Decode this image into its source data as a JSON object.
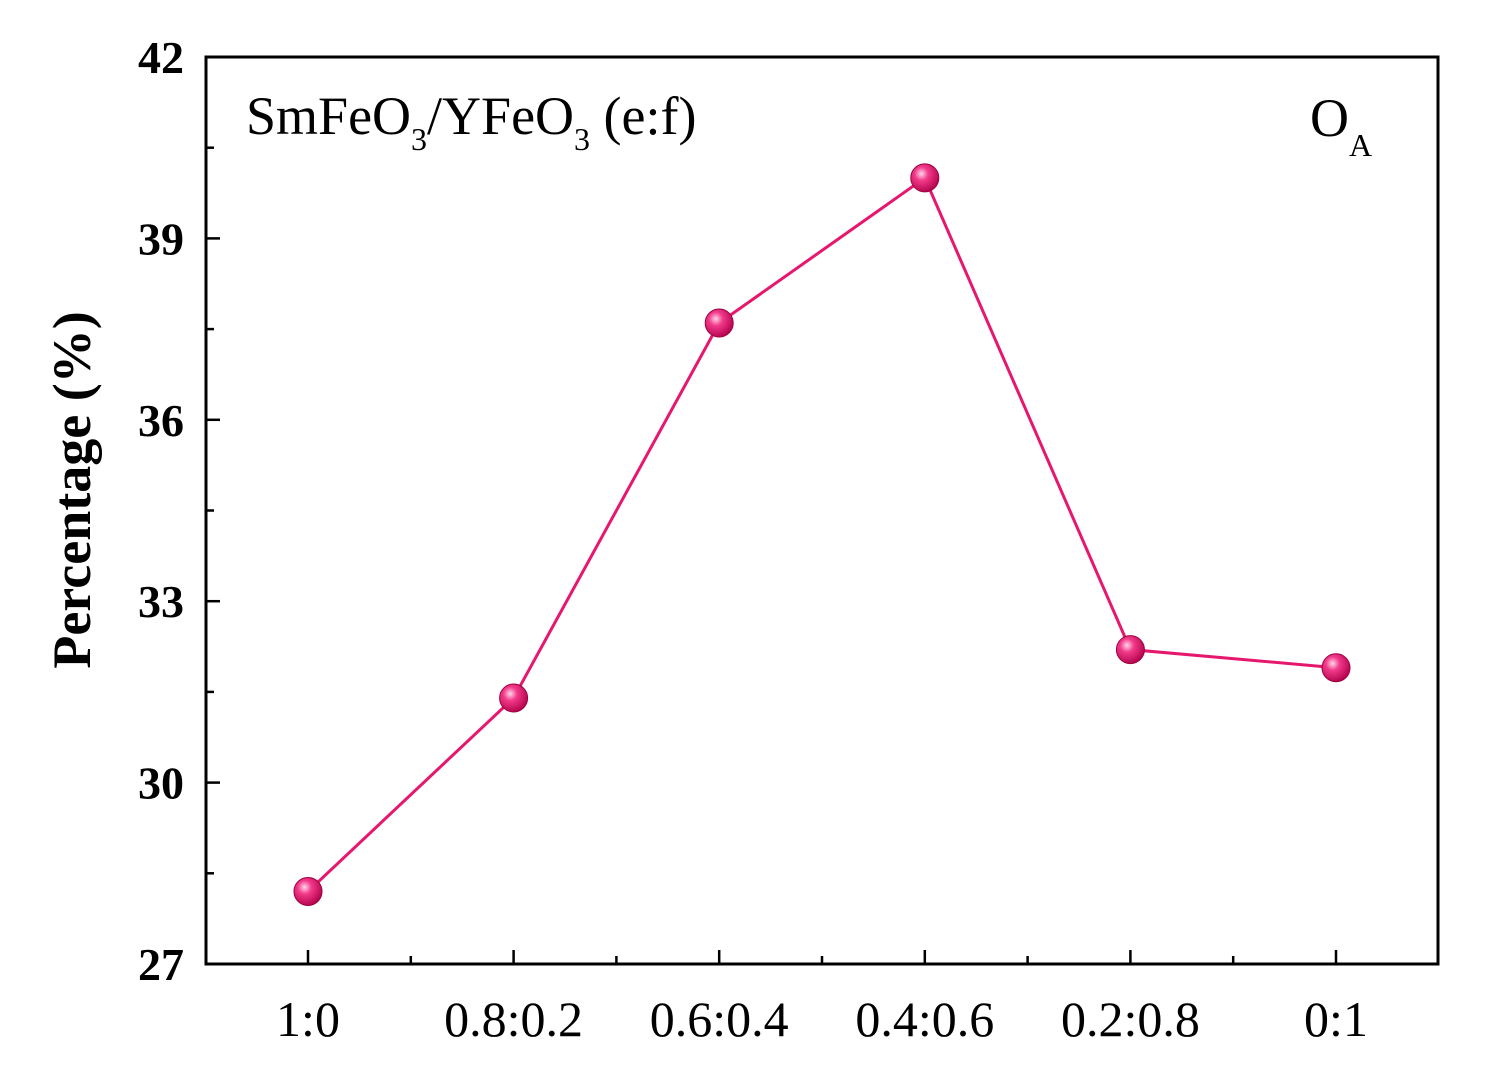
{
  "chart_data": {
    "type": "line",
    "categories": [
      "1:0",
      "0.8:0.2",
      "0.6:0.4",
      "0.4:0.6",
      "0.2:0.8",
      "0:1"
    ],
    "series": [
      {
        "values": [
          28.2,
          31.4,
          37.6,
          40.0,
          32.2,
          31.9
        ]
      }
    ],
    "ylabel": "Percentage (%)",
    "xlabel": "",
    "ylim": [
      27,
      42
    ],
    "yticks": [
      27,
      30,
      33,
      36,
      39,
      42
    ],
    "grid": false,
    "line_color": "#e6186e",
    "marker_color": "#e6186e",
    "annotations": {
      "sample": {
        "part1": "SmFeO",
        "sub1": "3",
        "part2": "/YFeO",
        "sub2": "3",
        "part3": " (e:f)"
      },
      "species": {
        "main": "O",
        "sub": "A"
      }
    }
  }
}
